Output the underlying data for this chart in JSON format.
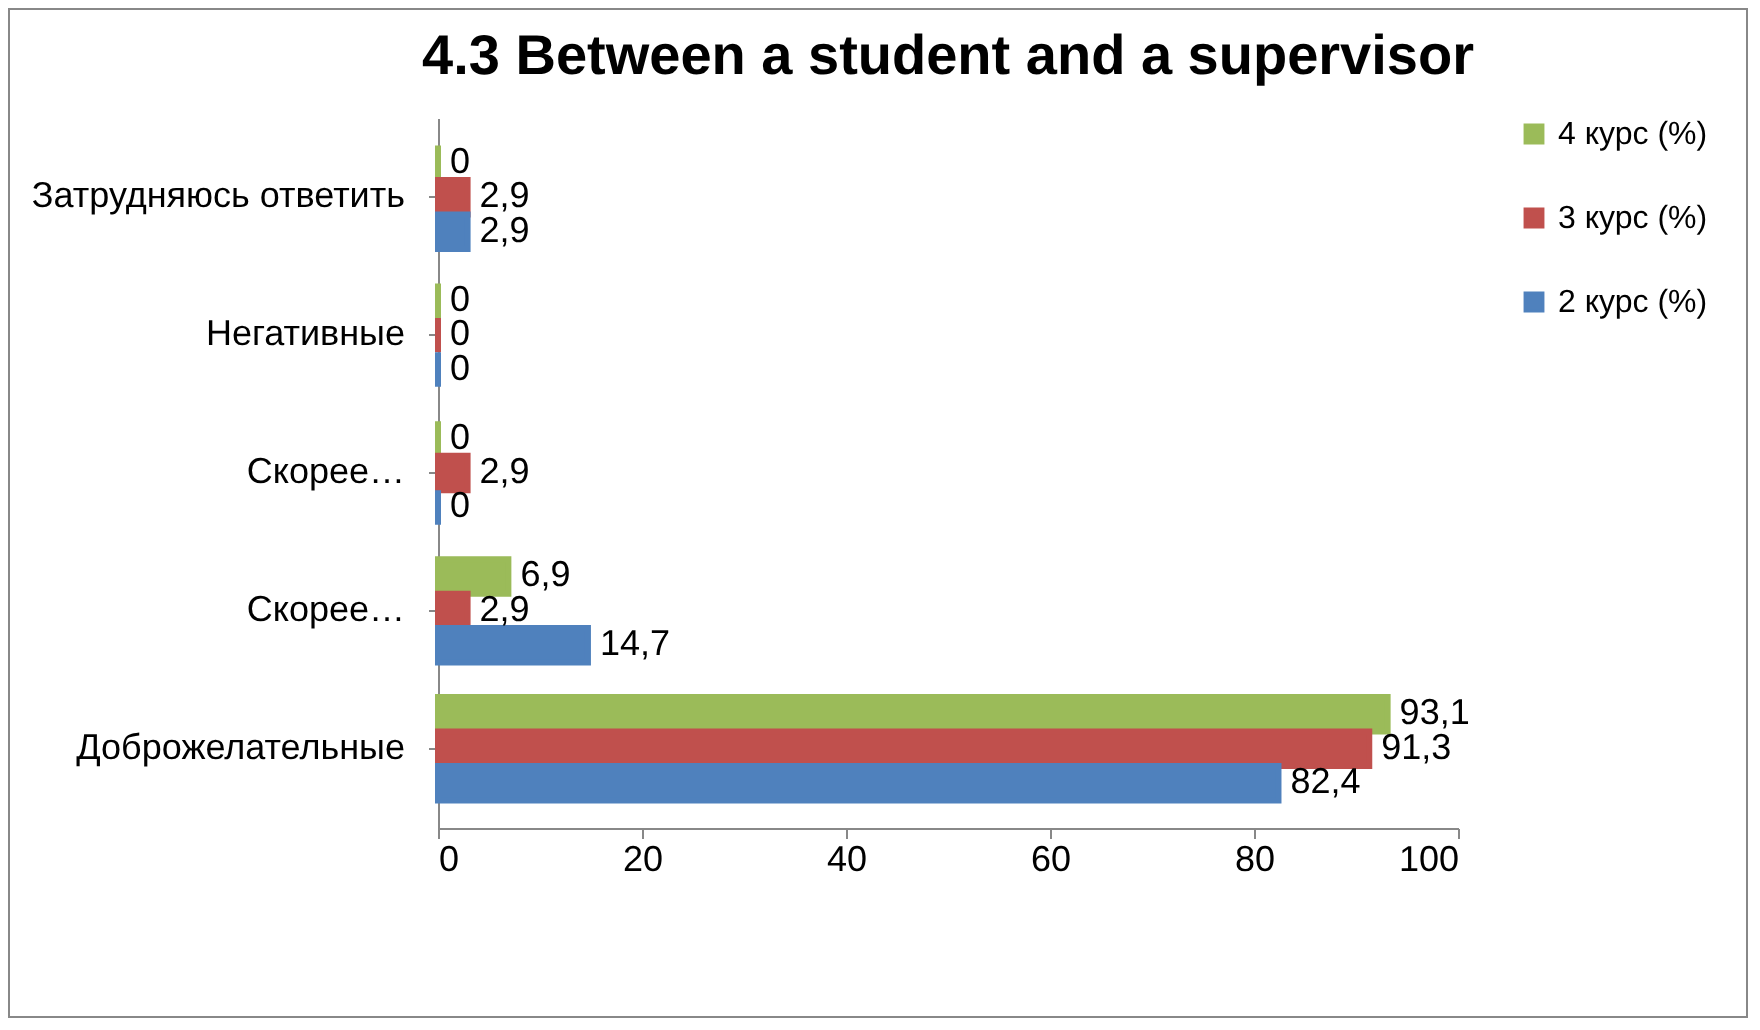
{
  "chart_data": {
    "type": "bar",
    "orientation": "horizontal",
    "title": "4.3 Between a student and a supervisor",
    "categories": [
      "Затрудняюсь ответить",
      "Негативные",
      "Скорее…",
      "Скорее…",
      "Доброжелательные"
    ],
    "series": [
      {
        "name": "4 курс (%)",
        "color": "#9bbb59",
        "values": [
          0,
          0,
          0,
          6.9,
          93.1
        ],
        "value_labels": [
          "0",
          "0",
          "0",
          "6,9",
          "93,1"
        ]
      },
      {
        "name": "3 курс (%)",
        "color": "#c0504d",
        "values": [
          2.9,
          0,
          2.9,
          2.9,
          91.3
        ],
        "value_labels": [
          "2,9",
          "0",
          "2,9",
          "2,9",
          "91,3"
        ]
      },
      {
        "name": "2 курс (%)",
        "color": "#4f81bd",
        "values": [
          2.9,
          0,
          0,
          14.7,
          82.4
        ],
        "value_labels": [
          "2,9",
          "0",
          "0",
          "14,7",
          "82,4"
        ]
      }
    ],
    "xlim": [
      0,
      100
    ],
    "xticks": [
      0,
      20,
      40,
      60,
      80,
      100
    ],
    "grid": false,
    "legend": "right"
  }
}
